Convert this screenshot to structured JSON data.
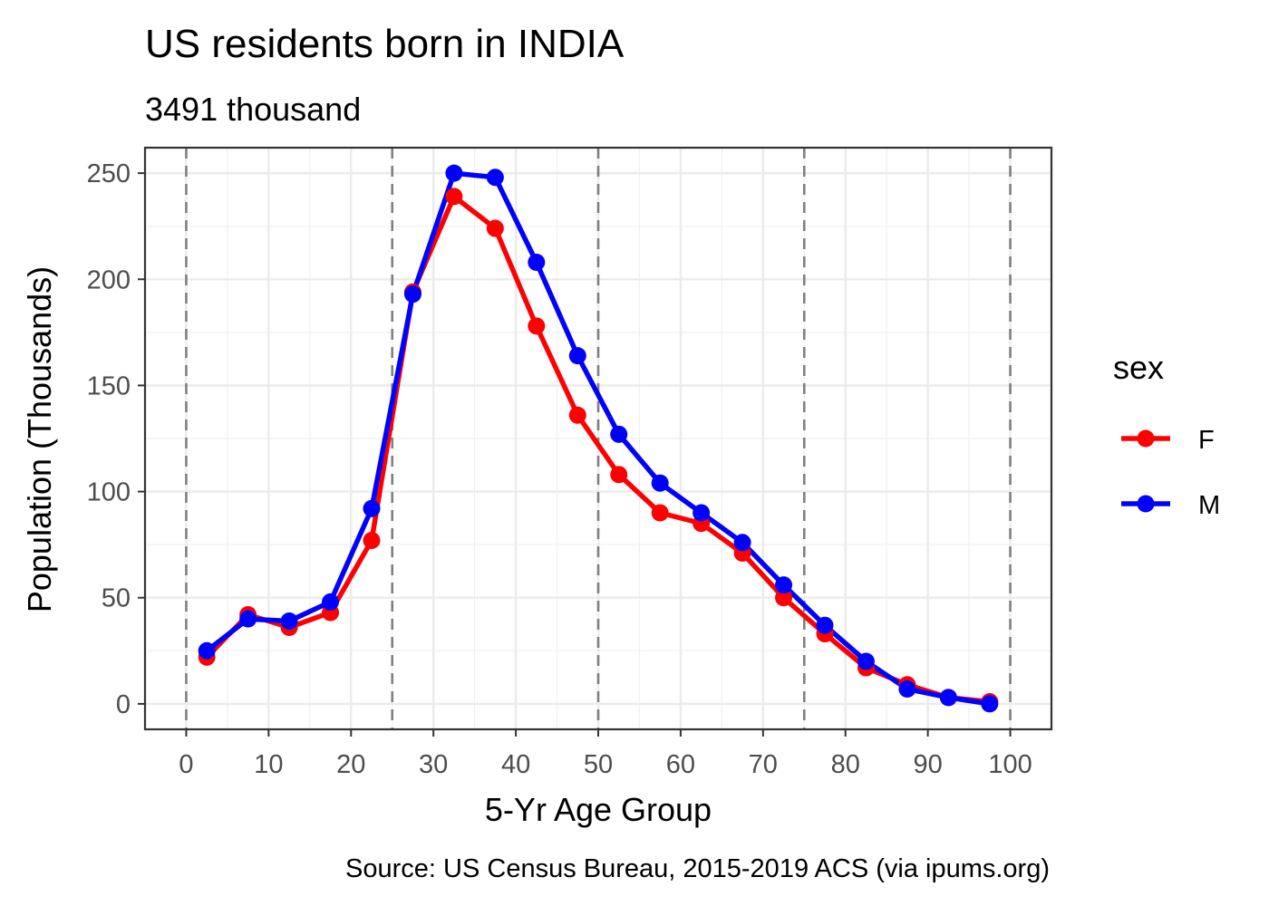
{
  "chart_data": {
    "type": "line",
    "title": "US residents born in INDIA",
    "subtitle": "3491 thousand",
    "xlabel": "5-Yr Age Group",
    "ylabel": "Population (Thousands)",
    "caption": "Source: US Census Bureau, 2015-2019 ACS (via ipums.org)",
    "xlim": [
      -5,
      105
    ],
    "ylim": [
      -12,
      262
    ],
    "x_ticks": [
      0,
      10,
      20,
      30,
      40,
      50,
      60,
      70,
      80,
      90,
      100
    ],
    "y_ticks": [
      0,
      50,
      100,
      150,
      200,
      250
    ],
    "grid": true,
    "reference_lines_x": [
      0,
      25,
      50,
      75,
      100
    ],
    "legend": {
      "title": "sex",
      "position": "right"
    },
    "x": [
      2.5,
      7.5,
      12.5,
      17.5,
      22.5,
      27.5,
      32.5,
      37.5,
      42.5,
      47.5,
      52.5,
      57.5,
      62.5,
      67.5,
      72.5,
      77.5,
      82.5,
      87.5,
      92.5,
      97.5
    ],
    "series": [
      {
        "name": "F",
        "color": "#ff0000",
        "values": [
          22,
          42,
          36,
          43,
          77,
          194,
          239,
          224,
          178,
          136,
          108,
          90,
          85,
          71,
          50,
          33,
          17,
          9,
          3,
          1
        ]
      },
      {
        "name": "M",
        "color": "#0000ff",
        "values": [
          25,
          40,
          39,
          48,
          92,
          193,
          250,
          248,
          208,
          164,
          127,
          104,
          90,
          76,
          56,
          37,
          20,
          7,
          3,
          0
        ]
      }
    ]
  }
}
